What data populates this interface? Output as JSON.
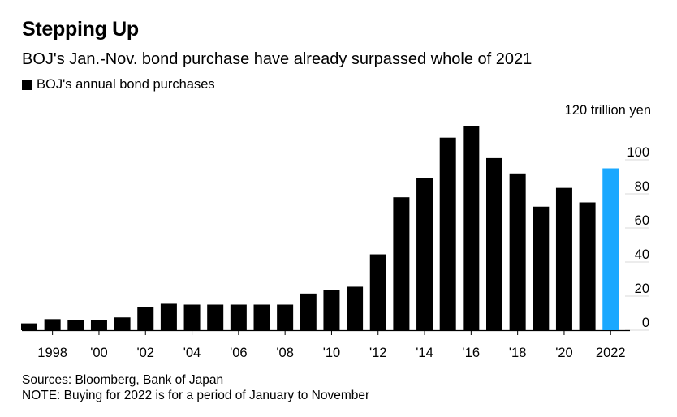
{
  "header": {
    "title": "Stepping Up",
    "subtitle": "BOJ's Jan.-Nov. bond purchase have already surpassed whole of 2021"
  },
  "legend": {
    "label": "BOJ's annual bond purchases"
  },
  "footer": {
    "sources": "Sources: Bloomberg, Bank of Japan",
    "note": "NOTE: Buying for 2022 is for a period of January to November"
  },
  "chart_data": {
    "type": "bar",
    "title": "Stepping Up",
    "unit_label": "120 trillion yen",
    "categories": [
      "1997",
      "1998",
      "1999",
      "2000",
      "2001",
      "2002",
      "2003",
      "2004",
      "2005",
      "2006",
      "2007",
      "2008",
      "2009",
      "2010",
      "2011",
      "2012",
      "2013",
      "2014",
      "2015",
      "2016",
      "2017",
      "2018",
      "2019",
      "2020",
      "2021",
      "2022"
    ],
    "values": [
      4,
      6.5,
      6,
      6,
      7.5,
      13.5,
      15.5,
      15,
      15,
      15,
      15,
      15,
      21.5,
      23.5,
      25.5,
      44.5,
      78,
      89.5,
      113,
      120,
      101,
      92,
      72.5,
      83.5,
      75,
      95
    ],
    "x_tick_labels": {
      "1998": "1998",
      "2000": "'00",
      "2002": "'02",
      "2004": "'04",
      "2006": "'06",
      "2008": "'08",
      "2010": "'10",
      "2012": "'12",
      "2014": "'14",
      "2016": "'16",
      "2018": "'18",
      "2020": "'20",
      "2022": "2022"
    },
    "y_ticks": [
      0,
      20,
      40,
      60,
      80,
      100
    ],
    "ylim": [
      0,
      120
    ],
    "y_axis_position": "right",
    "bar_color": "#000000",
    "highlight_color": "#1aa8ff",
    "highlight_category": "2022"
  }
}
